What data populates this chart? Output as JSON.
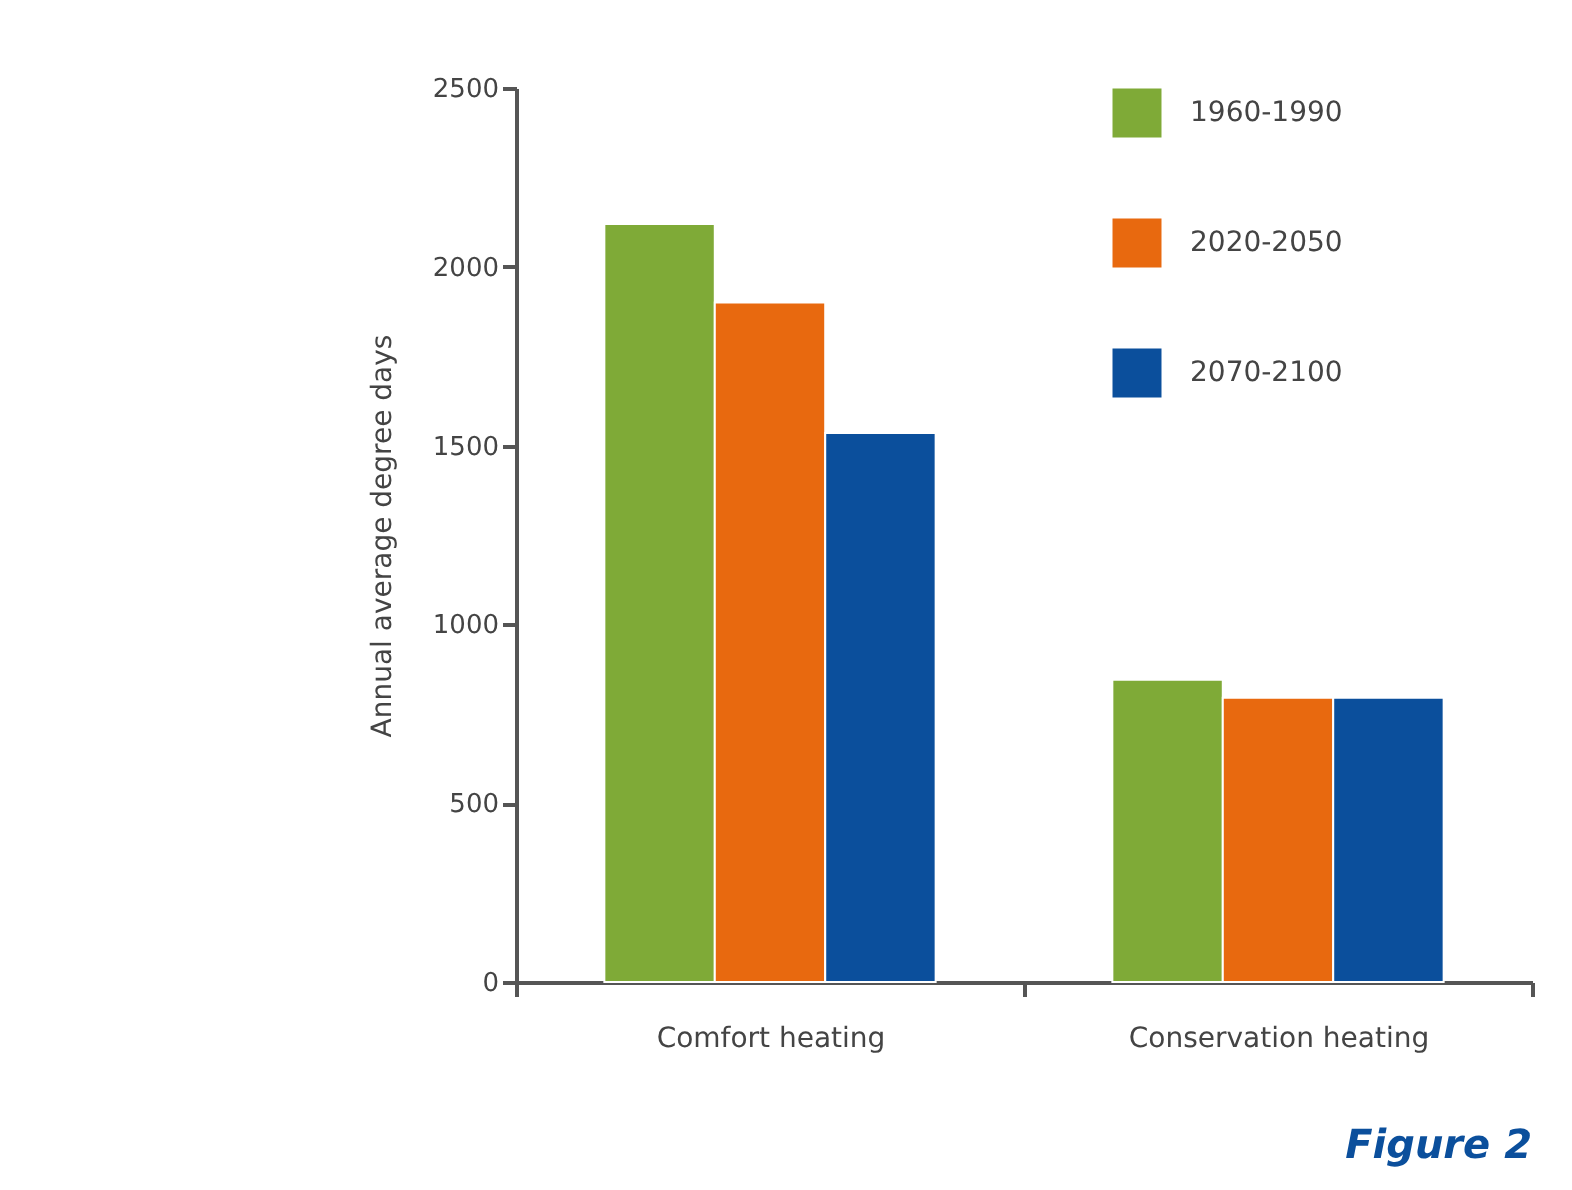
{
  "chart_data": {
    "type": "bar",
    "ylabel": "Annual average degree days",
    "categories": [
      "Comfort heating",
      "Conservation heating"
    ],
    "series": [
      {
        "name": "1960-1990",
        "color": "#7faa37",
        "values": [
          2120,
          845
        ]
      },
      {
        "name": "2020-2050",
        "color": "#e8690f",
        "values": [
          1900,
          795
        ]
      },
      {
        "name": "2070-2100",
        "color": "#0b4f9c",
        "values": [
          1535,
          795
        ]
      }
    ],
    "ylim": [
      0,
      2500
    ],
    "yticks": [
      0,
      500,
      1000,
      1500,
      2000,
      2500
    ],
    "grid": false,
    "legend": "top right",
    "annotations": [
      "Figure 2"
    ]
  }
}
